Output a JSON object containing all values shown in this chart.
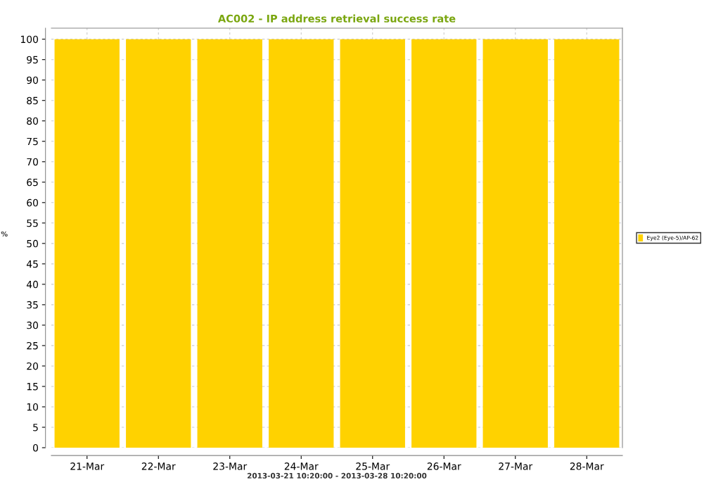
{
  "chart_data": {
    "type": "bar",
    "title": "AC002 - IP address retrieval success rate",
    "xlabel": "2013-03-21 10:20:00 - 2013-03-28 10:20:00",
    "ylabel": "%",
    "categories": [
      "21-Mar",
      "22-Mar",
      "23-Mar",
      "24-Mar",
      "25-Mar",
      "26-Mar",
      "27-Mar",
      "28-Mar"
    ],
    "series": [
      {
        "name": "Eye2 (Eye-5)/AP-62",
        "color": "#ffd200",
        "values": [
          100,
          100,
          100,
          100,
          100,
          100,
          100,
          100
        ]
      }
    ],
    "ylim": [
      0,
      102.7
    ],
    "yticks": [
      0,
      5,
      10,
      15,
      20,
      25,
      30,
      35,
      40,
      45,
      50,
      55,
      60,
      65,
      70,
      75,
      80,
      85,
      90,
      95,
      100
    ],
    "grid": true,
    "legend": "right"
  }
}
